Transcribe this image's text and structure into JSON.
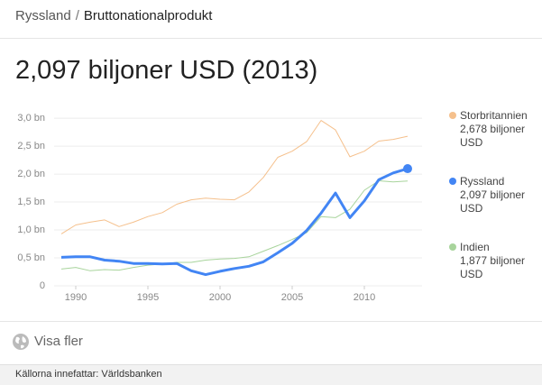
{
  "breadcrumb": [
    "Ryssland",
    "Bruttonationalprodukt"
  ],
  "more": "Visa fler",
  "source": "Källorna innefattar: Världsbanken",
  "chart_data": {
    "type": "line",
    "title": "2,097 biljoner USD (2013)",
    "x": [
      1989,
      1990,
      1991,
      1992,
      1993,
      1994,
      1995,
      1996,
      1997,
      1998,
      1999,
      2000,
      2001,
      2002,
      2003,
      2004,
      2005,
      2006,
      2007,
      2008,
      2009,
      2010,
      2011,
      2012,
      2013
    ],
    "xlim": [
      1988.5,
      2014
    ],
    "xticks": [
      1990,
      1995,
      2000,
      2005,
      2010
    ],
    "ylim": [
      0,
      3.05
    ],
    "yticks": [
      0,
      {
        "value": 0.5,
        "label": "0,5 bn"
      },
      {
        "value": 1,
        "label": "1,0 bn"
      },
      {
        "value": 1.5,
        "label": "1,5 bn"
      },
      {
        "value": 2,
        "label": "2,0 bn"
      },
      {
        "value": 2.5,
        "label": "2,5 bn"
      },
      {
        "value": 3,
        "label": "3,0 bn"
      }
    ],
    "grid": true,
    "series": [
      {
        "name": "Storbritannien",
        "color": "#f5c08c",
        "line_width": 1,
        "values": [
          0.93,
          1.09,
          1.14,
          1.18,
          1.06,
          1.14,
          1.24,
          1.31,
          1.46,
          1.54,
          1.57,
          1.55,
          1.54,
          1.68,
          1.94,
          2.3,
          2.41,
          2.58,
          2.96,
          2.79,
          2.31,
          2.41,
          2.59,
          2.62,
          2.678
        ],
        "value_labels": [
          null,
          null,
          null,
          null,
          null,
          null,
          null,
          null,
          null,
          null,
          null,
          null,
          null,
          null,
          null,
          null,
          null,
          null,
          null,
          null,
          null,
          null,
          null,
          null,
          "2,678 biljoner USD"
        ]
      },
      {
        "name": "Ryssland",
        "color": "#4285f4",
        "line_width": 3,
        "values": [
          0.51,
          0.52,
          0.52,
          0.46,
          0.44,
          0.4,
          0.4,
          0.39,
          0.4,
          0.27,
          0.2,
          0.26,
          0.31,
          0.35,
          0.43,
          0.59,
          0.76,
          0.99,
          1.3,
          1.66,
          1.22,
          1.52,
          1.9,
          2.02,
          2.097
        ],
        "value_labels": [
          null,
          null,
          null,
          null,
          null,
          null,
          null,
          null,
          null,
          null,
          null,
          null,
          null,
          null,
          null,
          null,
          null,
          null,
          null,
          null,
          null,
          null,
          null,
          null,
          "2,097 biljoner USD"
        ]
      },
      {
        "name": "Indien",
        "color": "#a8d49c",
        "line_width": 1,
        "values": [
          0.3,
          0.33,
          0.27,
          0.29,
          0.28,
          0.33,
          0.37,
          0.39,
          0.42,
          0.42,
          0.46,
          0.48,
          0.49,
          0.52,
          0.62,
          0.72,
          0.83,
          0.95,
          1.24,
          1.22,
          1.37,
          1.71,
          1.88,
          1.86,
          1.877
        ],
        "value_labels": [
          null,
          null,
          null,
          null,
          null,
          null,
          null,
          null,
          null,
          null,
          null,
          null,
          null,
          null,
          null,
          null,
          null,
          null,
          null,
          null,
          null,
          null,
          null,
          null,
          "1,877 biljoner USD"
        ]
      }
    ]
  }
}
